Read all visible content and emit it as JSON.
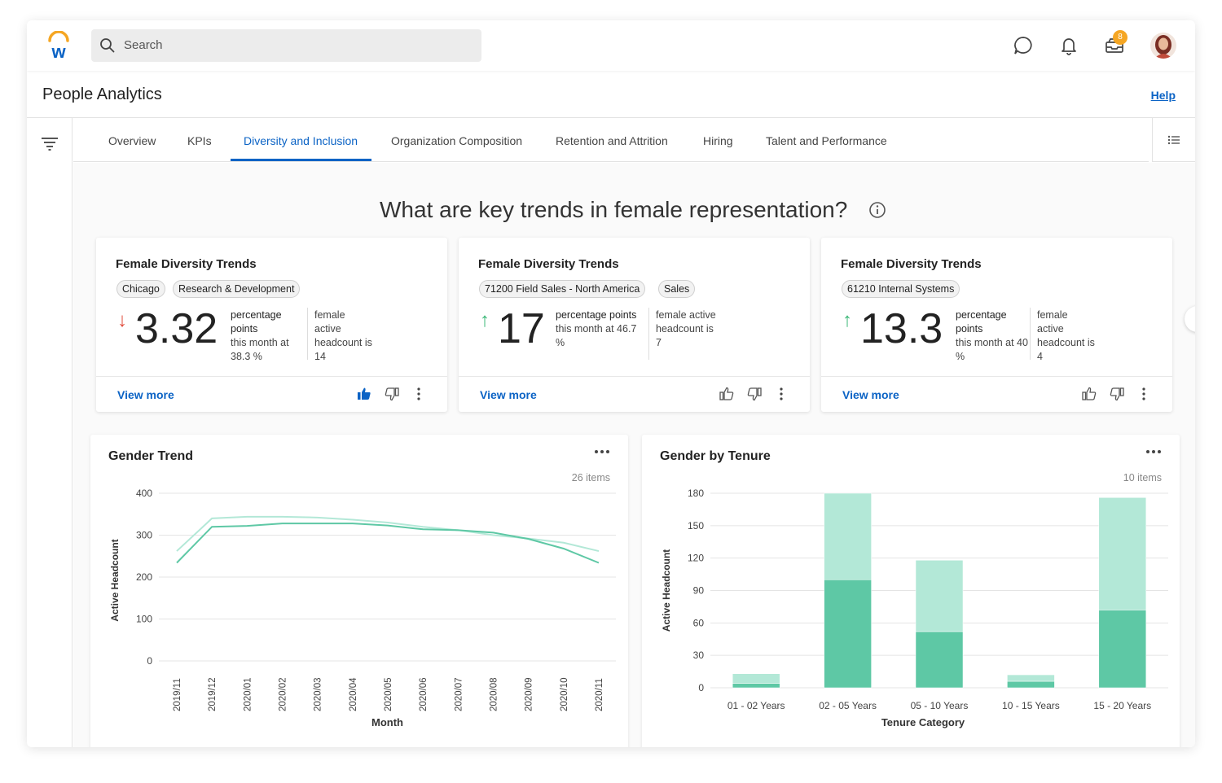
{
  "search": {
    "placeholder": "Search"
  },
  "header": {
    "badge_count": "8"
  },
  "page": {
    "title": "People Analytics",
    "help": "Help"
  },
  "tabs": [
    {
      "label": "Overview"
    },
    {
      "label": "KPIs"
    },
    {
      "label": "Diversity and Inclusion"
    },
    {
      "label": "Organization Composition"
    },
    {
      "label": "Retention and Attrition"
    },
    {
      "label": "Hiring"
    },
    {
      "label": "Talent and Performance"
    }
  ],
  "active_tab": "Diversity and Inclusion",
  "question": "What are key trends in female representation?",
  "cards": [
    {
      "title": "Female Diversity Trends",
      "chips": [
        "Chicago",
        "Research & Development"
      ],
      "direction": "down",
      "value": "3.32",
      "desc1_bold": "percentage points",
      "desc1_rest": "this month at 38.3 %",
      "desc2": "female active headcount is 14",
      "view_more": "View more",
      "liked": true
    },
    {
      "title": "Female Diversity Trends",
      "chips": [
        "71200 Field Sales - North America",
        "Sales"
      ],
      "direction": "up",
      "value": "17",
      "desc1_bold": "percentage points",
      "desc1_rest": "this month at 46.7 %",
      "desc2": "female active headcount is 7",
      "view_more": "View more",
      "liked": false
    },
    {
      "title": "Female Diversity Trends",
      "chips": [
        "61210 Internal Systems"
      ],
      "direction": "up",
      "value": "13.3",
      "desc1_bold": "percentage points",
      "desc1_rest": "this month at 40 %",
      "desc2": "female active headcount is 4",
      "view_more": "View more",
      "liked": false
    }
  ],
  "colors": {
    "accent": "#0b63c5",
    "series_dark": "#5ec8a5",
    "series_light": "#b3e8d7",
    "down": "#e14b3b",
    "up": "#3cb878"
  },
  "chart_data": [
    {
      "type": "line",
      "title": "Gender Trend",
      "items_label": "26 items",
      "xlabel": "Month",
      "ylabel": "Active Headcount",
      "ylim": [
        0,
        400
      ],
      "yticks": [
        0,
        100,
        200,
        300,
        400
      ],
      "categories": [
        "2019/11",
        "2019/12",
        "2020/01",
        "2020/02",
        "2020/03",
        "2020/04",
        "2020/05",
        "2020/06",
        "2020/07",
        "2020/08",
        "2020/09",
        "2020/10",
        "2020/11"
      ],
      "series": [
        {
          "values": [
            262,
            340,
            344,
            344,
            342,
            337,
            330,
            320,
            312,
            300,
            292,
            282,
            262
          ]
        },
        {
          "values": [
            234,
            320,
            322,
            328,
            328,
            328,
            323,
            314,
            312,
            306,
            291,
            268,
            234
          ]
        }
      ]
    },
    {
      "type": "bar",
      "title": "Gender by Tenure",
      "items_label": "10 items",
      "xlabel": "Tenure Category",
      "ylabel": "Active Headcount",
      "ylim": [
        0,
        180
      ],
      "yticks": [
        0,
        30,
        60,
        90,
        120,
        150,
        180
      ],
      "stacked": true,
      "categories": [
        "01 - 02 Years",
        "02 - 05 Years",
        "05 - 10 Years",
        "10 - 15 Years",
        "15 - 20 Years"
      ],
      "series": [
        {
          "values": [
            4,
            100,
            52,
            6,
            72
          ]
        },
        {
          "values": [
            9,
            80,
            66,
            6,
            104
          ]
        }
      ]
    }
  ]
}
